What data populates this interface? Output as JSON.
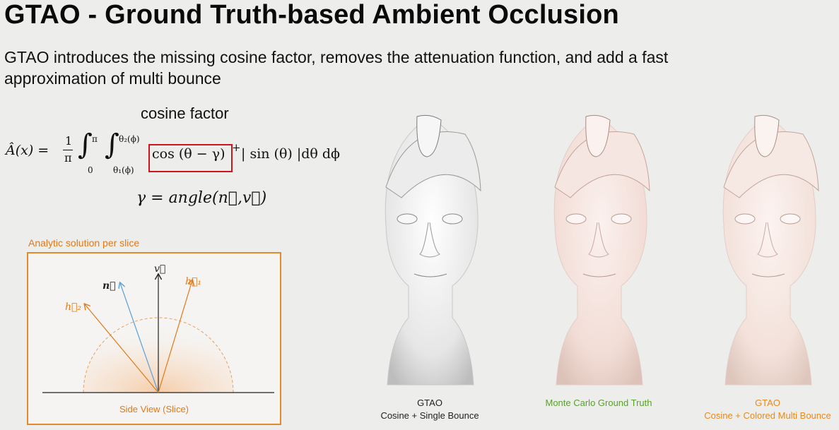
{
  "slide": {
    "title": "GTAO - Ground Truth-based Ambient Occlusion",
    "subtitle": "GTAO introduces the missing cosine factor, removes the attenuation function, and add a fast approximation of multi bounce",
    "cosine_label": "cosine factor",
    "formula": {
      "lhs": "Â(x) = ",
      "frac_num": "1",
      "frac_den": "π",
      "int1_upper": "π",
      "int1_lower": "0",
      "int2_upper": "θ₂(ϕ)",
      "int2_lower": "θ₁(ϕ)",
      "cos_term": "cos (θ − γ)",
      "cos_sup": "+",
      "rest": "| sin (θ) |dθ dϕ"
    },
    "gamma_def": "γ = angle(n⃗,v⃗)",
    "diagram": {
      "title": "Analytic solution per slice",
      "caption": "Side View (Slice)",
      "labels": {
        "v": "v⃗",
        "n": "n⃗",
        "h1": "h⃗₁",
        "h2": "h⃗₂"
      },
      "colors": {
        "accent": "#e07a1a",
        "normal": "#5aa0d8",
        "axis": "#222222"
      }
    },
    "images": [
      {
        "caption_line1": "GTAO",
        "caption_line2": "Cosine + Single Bounce",
        "color": "#222222",
        "tint": "#f2f2f2"
      },
      {
        "caption_line1": "Monte Carlo Ground Truth",
        "caption_line2": "",
        "color": "#5aa02c",
        "tint": "#f4e4df"
      },
      {
        "caption_line1": "GTAO",
        "caption_line2": "Cosine + Colored Multi Bounce",
        "color": "#e88a1e",
        "tint": "#f4e6e0"
      }
    ]
  }
}
